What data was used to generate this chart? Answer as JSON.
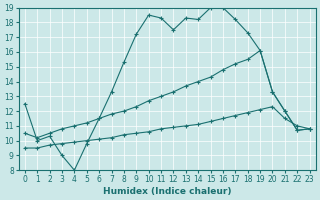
{
  "xlabel": "Humidex (Indice chaleur)",
  "bg_color": "#cce8e8",
  "line_color": "#1a7070",
  "grid_color": "#ffffff",
  "xmin": 0,
  "xmax": 23,
  "ymin": 8,
  "ymax": 19,
  "line1_x": [
    0,
    1,
    2,
    3,
    4,
    5,
    6,
    7,
    8,
    9,
    10,
    11,
    12,
    13,
    14,
    15,
    16,
    17,
    18,
    19,
    20,
    21,
    22,
    23
  ],
  "line1_y": [
    12.5,
    10.0,
    10.3,
    9.0,
    8.0,
    9.8,
    11.5,
    13.3,
    15.3,
    17.2,
    18.5,
    18.3,
    17.5,
    18.3,
    18.2,
    19.0,
    19.0,
    18.2,
    17.3,
    16.1,
    13.3,
    12.0,
    10.7,
    10.8
  ],
  "line2_x": [
    0,
    1,
    2,
    3,
    4,
    5,
    6,
    7,
    8,
    9,
    10,
    11,
    12,
    13,
    14,
    15,
    16,
    17,
    18,
    19,
    20,
    21,
    22,
    23
  ],
  "line2_y": [
    10.5,
    10.2,
    10.5,
    10.8,
    11.0,
    11.2,
    11.5,
    11.8,
    12.0,
    12.3,
    12.7,
    13.0,
    13.3,
    13.7,
    14.0,
    14.3,
    14.8,
    15.2,
    15.5,
    16.1,
    13.3,
    12.0,
    10.7,
    10.8
  ],
  "line3_x": [
    0,
    1,
    2,
    3,
    4,
    5,
    6,
    7,
    8,
    9,
    10,
    11,
    12,
    13,
    14,
    15,
    16,
    17,
    18,
    19,
    20,
    21,
    22,
    23
  ],
  "line3_y": [
    9.5,
    9.5,
    9.7,
    9.8,
    9.9,
    10.0,
    10.1,
    10.2,
    10.4,
    10.5,
    10.6,
    10.8,
    10.9,
    11.0,
    11.1,
    11.3,
    11.5,
    11.7,
    11.9,
    12.1,
    12.3,
    11.5,
    11.0,
    10.8
  ]
}
